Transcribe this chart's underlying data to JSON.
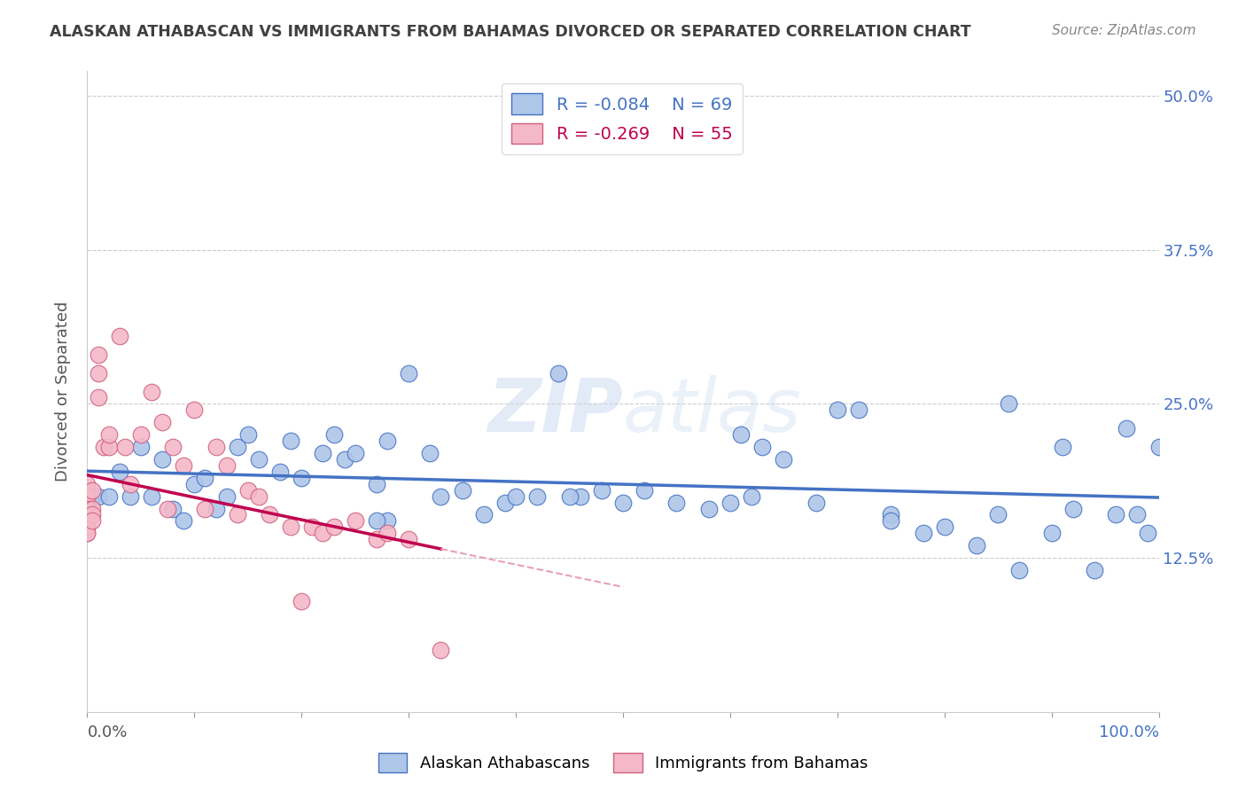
{
  "title": "ALASKAN ATHABASCAN VS IMMIGRANTS FROM BAHAMAS DIVORCED OR SEPARATED CORRELATION CHART",
  "source_text": "Source: ZipAtlas.com",
  "ylabel": "Divorced or Separated",
  "legend_label_1": "Alaskan Athabascans",
  "legend_label_2": "Immigrants from Bahamas",
  "r1": -0.084,
  "n1": 69,
  "r2": -0.269,
  "n2": 55,
  "color1": "#aec6e8",
  "color2": "#f4b8c8",
  "trendline1_color": "#4472c4",
  "trendline2_color": "#c0004e",
  "trendline2_extrap_color": "#e8a0b8",
  "background_color": "#ffffff",
  "grid_color": "#cccccc",
  "title_color": "#404040",
  "xlim": [
    0.0,
    1.0
  ],
  "ylim": [
    0.0,
    0.52
  ],
  "yticks": [
    0.125,
    0.25,
    0.375,
    0.5
  ],
  "ytick_labels": [
    "12.5%",
    "25.0%",
    "37.5%",
    "50.0%"
  ],
  "blue_x": [
    0.005,
    0.01,
    0.02,
    0.03,
    0.04,
    0.05,
    0.06,
    0.07,
    0.08,
    0.09,
    0.1,
    0.11,
    0.12,
    0.13,
    0.14,
    0.15,
    0.16,
    0.18,
    0.19,
    0.2,
    0.22,
    0.23,
    0.24,
    0.25,
    0.27,
    0.28,
    0.3,
    0.32,
    0.35,
    0.37,
    0.39,
    0.4,
    0.42,
    0.44,
    0.46,
    0.48,
    0.5,
    0.52,
    0.55,
    0.58,
    0.6,
    0.62,
    0.65,
    0.68,
    0.7,
    0.72,
    0.75,
    0.78,
    0.8,
    0.83,
    0.85,
    0.87,
    0.9,
    0.92,
    0.94,
    0.96,
    0.97,
    0.98,
    0.99,
    1.0,
    0.33,
    0.45,
    0.28,
    0.61,
    0.86,
    0.91,
    0.27,
    0.63,
    0.75
  ],
  "blue_y": [
    0.175,
    0.175,
    0.175,
    0.195,
    0.175,
    0.215,
    0.175,
    0.205,
    0.165,
    0.155,
    0.185,
    0.19,
    0.165,
    0.175,
    0.215,
    0.225,
    0.205,
    0.195,
    0.22,
    0.19,
    0.21,
    0.225,
    0.205,
    0.21,
    0.185,
    0.22,
    0.275,
    0.21,
    0.18,
    0.16,
    0.17,
    0.175,
    0.175,
    0.275,
    0.175,
    0.18,
    0.17,
    0.18,
    0.17,
    0.165,
    0.17,
    0.175,
    0.205,
    0.17,
    0.245,
    0.245,
    0.16,
    0.145,
    0.15,
    0.135,
    0.16,
    0.115,
    0.145,
    0.165,
    0.115,
    0.16,
    0.23,
    0.16,
    0.145,
    0.215,
    0.175,
    0.175,
    0.155,
    0.225,
    0.25,
    0.215,
    0.155,
    0.215,
    0.155
  ],
  "pink_x": [
    0.0,
    0.0,
    0.0,
    0.0,
    0.0,
    0.0,
    0.0,
    0.0,
    0.0,
    0.0,
    0.0,
    0.0,
    0.0,
    0.0,
    0.0,
    0.0,
    0.0,
    0.0,
    0.005,
    0.005,
    0.005,
    0.005,
    0.01,
    0.01,
    0.01,
    0.015,
    0.02,
    0.02,
    0.03,
    0.035,
    0.04,
    0.05,
    0.06,
    0.07,
    0.075,
    0.08,
    0.09,
    0.1,
    0.11,
    0.12,
    0.13,
    0.14,
    0.15,
    0.16,
    0.17,
    0.19,
    0.2,
    0.21,
    0.22,
    0.23,
    0.25,
    0.27,
    0.28,
    0.3,
    0.33
  ],
  "pink_y": [
    0.175,
    0.185,
    0.165,
    0.155,
    0.175,
    0.16,
    0.15,
    0.16,
    0.15,
    0.155,
    0.155,
    0.16,
    0.155,
    0.145,
    0.15,
    0.155,
    0.165,
    0.145,
    0.18,
    0.165,
    0.16,
    0.155,
    0.29,
    0.275,
    0.255,
    0.215,
    0.215,
    0.225,
    0.305,
    0.215,
    0.185,
    0.225,
    0.26,
    0.235,
    0.165,
    0.215,
    0.2,
    0.245,
    0.165,
    0.215,
    0.2,
    0.16,
    0.18,
    0.175,
    0.16,
    0.15,
    0.09,
    0.15,
    0.145,
    0.15,
    0.155,
    0.14,
    0.145,
    0.14,
    0.05
  ]
}
